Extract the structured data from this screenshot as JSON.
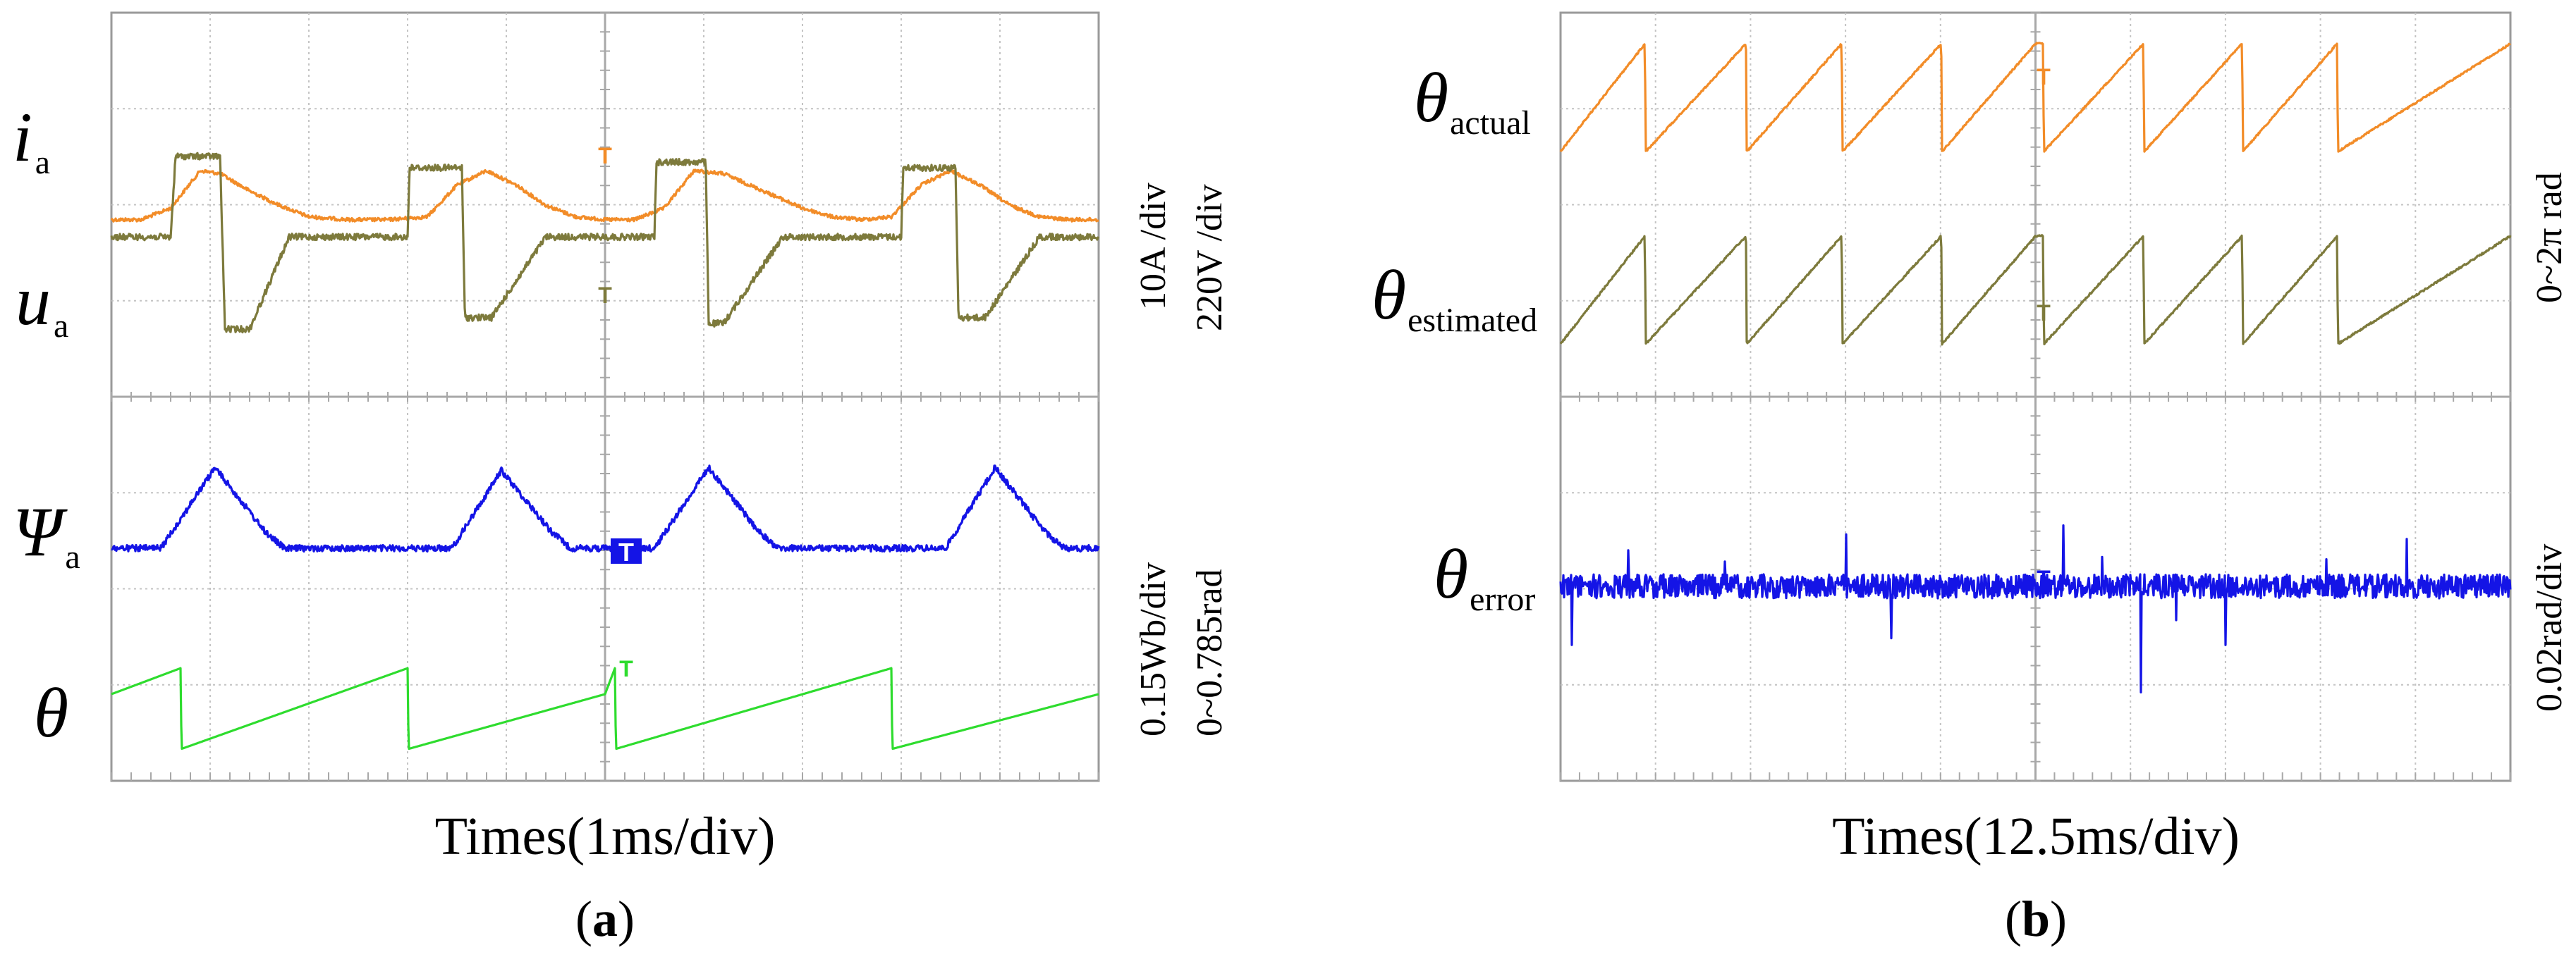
{
  "figure": {
    "panel_a": {
      "panel_label": "a",
      "xlabel": "Times(1ms/div)",
      "scale_top_1": "10A /div",
      "scale_top_2": "220V /div",
      "scale_bottom_1": "0.15Wb/div",
      "scale_bottom_2": "0~0.785rad",
      "signals": {
        "ia": {
          "symbol": "i",
          "sub": "a"
        },
        "ua": {
          "symbol": "u",
          "sub": "a"
        },
        "psi": {
          "symbol": "Ψ",
          "sub": "a"
        },
        "theta": {
          "symbol": "θ",
          "sub": ""
        }
      }
    },
    "panel_b": {
      "panel_label": "b",
      "xlabel": "Times(12.5ms/div)",
      "scale_top": "0~2π rad",
      "scale_bottom": "0.02rad/div",
      "signals": {
        "actual": {
          "symbol": "θ",
          "sub": "actual"
        },
        "estimated": {
          "symbol": "θ",
          "sub": "estimated"
        },
        "error": {
          "symbol": "θ",
          "sub": "error"
        }
      }
    },
    "trigger_marker": "T"
  },
  "colors": {
    "ia": "#f28c28",
    "ua": "#7d7a3c",
    "psi": "#1414e6",
    "theta": "#2edc2e",
    "actual": "#f28c28",
    "estimated": "#7d7a3c",
    "error": "#1414e6"
  },
  "chart_data": [
    {
      "type": "line",
      "title": "(a)",
      "xlabel": "Times(1ms/div)",
      "x_unit": "ms",
      "xlim": [
        0,
        10
      ],
      "series": [
        {
          "name": "i_a",
          "scale": "10A/div",
          "x": [
            0.0,
            0.3,
            0.6,
            0.9,
            1.1,
            1.4,
            1.7,
            2.0,
            2.4,
            2.8,
            3.2,
            3.5,
            3.8,
            4.1,
            4.4,
            4.7,
            5.0,
            5.3,
            5.6,
            5.9,
            6.2,
            6.6,
            7.0,
            7.3,
            7.6,
            7.9,
            8.2,
            8.5,
            8.8,
            9.1,
            9.4,
            9.7,
            10.0
          ],
          "y": [
            -1.0,
            -1.0,
            -0.8,
            -0.15,
            -0.2,
            -0.5,
            -0.75,
            -0.95,
            -1.0,
            -1.0,
            -0.95,
            -0.4,
            -0.15,
            -0.4,
            -0.75,
            -0.95,
            -1.0,
            -1.0,
            -0.8,
            -0.15,
            -0.2,
            -0.5,
            -0.8,
            -0.95,
            -1.0,
            -0.95,
            -0.4,
            -0.15,
            -0.4,
            -0.75,
            -0.95,
            -1.0,
            -1.0
          ]
        },
        {
          "name": "u_a",
          "scale": "220V/div",
          "x": [
            0.0,
            0.6,
            0.65,
            1.1,
            1.15,
            1.4,
            1.8,
            2.4,
            3.0,
            3.02,
            3.55,
            3.58,
            3.85,
            4.4,
            5.0,
            5.5,
            5.52,
            6.02,
            6.05,
            6.2,
            6.8,
            7.4,
            8.0,
            8.02,
            8.55,
            8.58,
            8.85,
            9.4,
            10.0
          ],
          "y": [
            1.0,
            1.0,
            2.4,
            2.4,
            -0.6,
            -0.6,
            1.0,
            1.0,
            1.0,
            2.2,
            2.2,
            -0.4,
            -0.4,
            1.0,
            1.0,
            1.0,
            2.3,
            2.3,
            -0.5,
            -0.5,
            1.0,
            1.0,
            1.0,
            2.2,
            2.2,
            -0.4,
            -0.4,
            1.0,
            1.0
          ]
        },
        {
          "name": "Ψ_a",
          "scale": "0.15Wb/div",
          "x": [
            0.0,
            0.5,
            1.05,
            1.55,
            1.75,
            2.2,
            3.0,
            3.45,
            3.95,
            4.45,
            4.65,
            5.0,
            5.5,
            6.05,
            6.55,
            6.75,
            7.3,
            7.9,
            8.45,
            8.95,
            9.45,
            9.65,
            10.0
          ],
          "y": [
            0.0,
            0.0,
            1.4,
            0.3,
            0.0,
            0.0,
            0.0,
            0.0,
            1.35,
            0.3,
            0.0,
            0.0,
            0.0,
            1.4,
            0.3,
            0.0,
            0.0,
            0.0,
            0.0,
            1.4,
            0.3,
            0.0,
            0.0
          ]
        },
        {
          "name": "θ",
          "scale": "0~0.785rad",
          "x": [
            0.0,
            0.7,
            0.71,
            3.0,
            3.01,
            5.0,
            5.1,
            5.11,
            7.9,
            7.91,
            10.0
          ],
          "y": [
            0.0,
            0.45,
            -0.95,
            0.45,
            -0.95,
            0.0,
            0.45,
            -0.95,
            0.45,
            -0.95,
            0.0
          ]
        }
      ]
    },
    {
      "type": "line",
      "title": "(b)",
      "xlabel": "Times(12.5ms/div)",
      "x_unit": "ms",
      "xlim": [
        0,
        125
      ],
      "series": [
        {
          "name": "θ_actual",
          "scale": "0~2π rad",
          "x": [
            0.0,
            11.1,
            11.2,
            24.4,
            24.5,
            37.0,
            37.1,
            50.1,
            50.2,
            62.5,
            63.5,
            63.6,
            76.7,
            76.8,
            89.7,
            89.8,
            102.2,
            102.3,
            125.0
          ],
          "y": [
            0.0,
            6.28,
            0.0,
            6.28,
            0.0,
            6.28,
            0.0,
            6.28,
            0.0,
            6.28,
            6.28,
            0.0,
            6.28,
            0.0,
            6.28,
            0.0,
            6.28,
            0.0,
            6.28
          ]
        },
        {
          "name": "θ_estimated",
          "scale": "0~2π rad",
          "x": [
            0.0,
            11.1,
            11.2,
            24.4,
            24.5,
            37.0,
            37.1,
            50.1,
            50.2,
            62.5,
            63.5,
            63.6,
            76.7,
            76.8,
            89.7,
            89.8,
            102.2,
            102.3,
            125.0
          ],
          "y": [
            0.0,
            6.28,
            0.0,
            6.28,
            0.0,
            6.28,
            0.0,
            6.28,
            0.0,
            6.28,
            6.28,
            0.0,
            6.28,
            0.0,
            6.28,
            0.0,
            6.28,
            0.0,
            6.28
          ]
        },
        {
          "name": "θ_error",
          "scale": "0.02rad/div",
          "x": [
            0.0,
            1.5,
            3.6,
            8.9,
            13.3,
            21.6,
            30.2,
            37.6,
            43.5,
            53.0,
            66.2,
            71.3,
            76.4,
            81.0,
            87.5,
            94.0,
            100.8,
            111.4,
            125.0
          ],
          "y": [
            0.0,
            -0.026,
            0.0,
            0.016,
            0.0,
            0.011,
            0.0,
            0.023,
            -0.023,
            0.0,
            0.027,
            0.013,
            -0.047,
            -0.015,
            -0.026,
            0.0,
            0.012,
            0.021,
            0.0
          ]
        }
      ]
    }
  ]
}
